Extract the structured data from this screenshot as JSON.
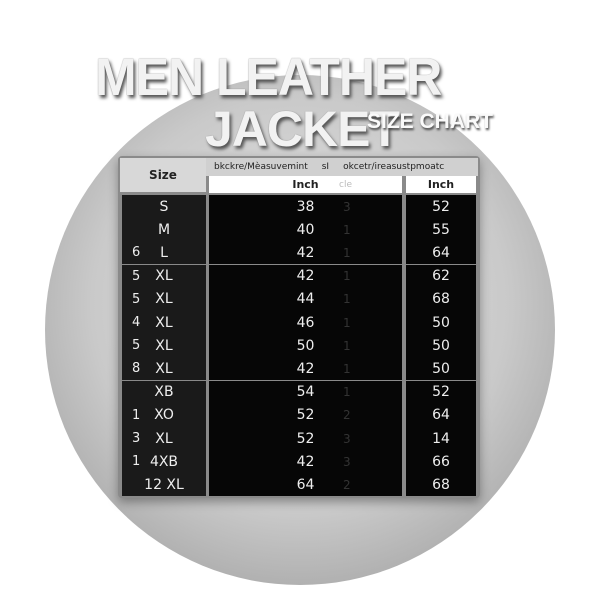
{
  "title": {
    "line1": "MEN LEATHER",
    "line2": "JACKET",
    "subtitle": "SIZE CHART"
  },
  "table": {
    "size_header": "Size",
    "group_header_1": "bkckre/Mèasuvemint",
    "group_header_mid": "sI",
    "group_header_2": "okcetr/ireasustpmoatc",
    "unit_1": "Inch",
    "unit_mid": "cle",
    "unit_2": "Inch",
    "rows": [
      {
        "num": "",
        "size": "S",
        "v1": "38",
        "mid": "3",
        "v2": "52"
      },
      {
        "num": "",
        "size": "M",
        "v1": "40",
        "mid": "1",
        "v2": "55"
      },
      {
        "num": "6",
        "size": "L",
        "v1": "42",
        "mid": "1",
        "v2": "64"
      },
      {
        "num": "5",
        "size": "XL",
        "v1": "42",
        "mid": "1",
        "v2": "62"
      },
      {
        "num": "5",
        "size": "XL",
        "v1": "44",
        "mid": "1",
        "v2": "68"
      },
      {
        "num": "4",
        "size": "XL",
        "v1": "46",
        "mid": "1",
        "v2": "50"
      },
      {
        "num": "5",
        "size": "XL",
        "v1": "50",
        "mid": "1",
        "v2": "50"
      },
      {
        "num": "8",
        "size": "XL",
        "v1": "42",
        "mid": "1",
        "v2": "50"
      },
      {
        "num": "",
        "size": "XB",
        "v1": "54",
        "mid": "1",
        "v2": "52"
      },
      {
        "num": "1",
        "size": "XO",
        "v1": "52",
        "mid": "2",
        "v2": "64"
      },
      {
        "num": "3",
        "size": "XL",
        "v1": "52",
        "mid": "3",
        "v2": "14"
      },
      {
        "num": "1",
        "size": "4XB",
        "v1": "42",
        "mid": "3",
        "v2": "66"
      },
      {
        "num": "",
        "size": "12 XL",
        "v1": "64",
        "mid": "2",
        "v2": "68"
      }
    ]
  }
}
